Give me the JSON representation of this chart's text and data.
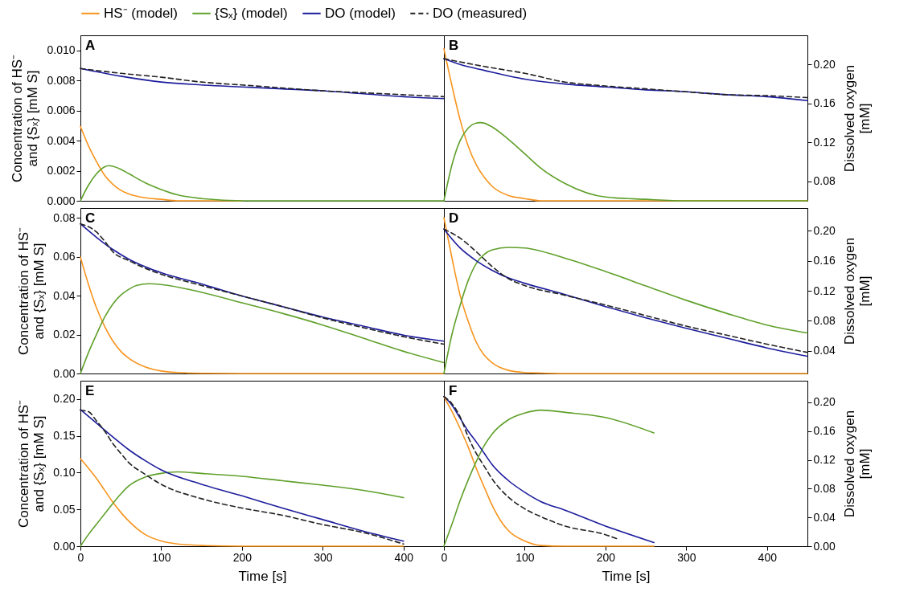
{
  "chart_data": [
    {
      "type": "line",
      "title": "A",
      "ylabel": "Concentration of HS⁻\nand {Sₓ} [mM S]",
      "xlim": [
        0,
        450
      ],
      "ylim": [
        0,
        0.011
      ],
      "yticks": [
        {
          "value": 0,
          "label": "0.000"
        },
        {
          "value": 0.002,
          "label": "0.002"
        },
        {
          "value": 0.004,
          "label": "0.004"
        },
        {
          "value": 0.006,
          "label": "0.006"
        },
        {
          "value": 0.008,
          "label": "0.008"
        },
        {
          "value": 0.01,
          "label": "0.010"
        }
      ],
      "y2lim": [
        0.06,
        0.23
      ],
      "tick_labels": [
        "y"
      ],
      "legend": "top",
      "series": [
        {
          "name": "HS⁻ (model)",
          "color": "#f7941d",
          "x": [
            0,
            10,
            20,
            30,
            40,
            50,
            60,
            80,
            100,
            120,
            150,
            200
          ],
          "values": [
            0.00495,
            0.00365,
            0.0026,
            0.0017,
            0.0011,
            0.0007,
            0.00045,
            0.0002,
            0.0001,
            0,
            0,
            0
          ]
        },
        {
          "name": "{Sₓ} (model)",
          "color": "#5fa02a",
          "x": [
            0,
            10,
            20,
            30,
            35,
            40,
            50,
            60,
            80,
            100,
            120,
            150,
            200,
            250,
            300,
            450
          ],
          "values": [
            0,
            0.00104,
            0.0018,
            0.00226,
            0.00234,
            0.0023,
            0.0021,
            0.0018,
            0.0012,
            0.00075,
            0.0004,
            0.00015,
            0,
            0,
            0,
            0
          ]
        },
        {
          "name": "DO (model)",
          "color": "#1c1c9c",
          "axis": "y2",
          "x": [
            0,
            50,
            100,
            150,
            200,
            250,
            300,
            350,
            400,
            450
          ],
          "values": [
            0.196,
            0.188,
            0.182,
            0.179,
            0.177,
            0.175,
            0.173,
            0.17,
            0.167,
            0.165
          ]
        },
        {
          "name": "DO (measured)",
          "color": "#222222",
          "axis": "y2",
          "line_style": "dashed",
          "x": [
            0,
            50,
            100,
            150,
            200,
            250,
            300,
            350,
            400,
            450
          ],
          "values": [
            0.196,
            0.191,
            0.187,
            0.182,
            0.179,
            0.176,
            0.173,
            0.171,
            0.169,
            0.167
          ]
        }
      ]
    },
    {
      "type": "line",
      "title": "B",
      "y2label": "Dissolved oxygen\n[mM]",
      "xlim": [
        0,
        450
      ],
      "ylim": [
        0,
        0.011
      ],
      "y2lim": [
        0.06,
        0.23
      ],
      "y2ticks": [
        {
          "value": 0.08,
          "label": "0.08"
        },
        {
          "value": 0.12,
          "label": "0.12"
        },
        {
          "value": 0.16,
          "label": "0.16"
        },
        {
          "value": 0.2,
          "label": "0.20"
        }
      ],
      "tick_labels": [
        "y2"
      ],
      "series": [
        {
          "color": "#f7941d",
          "x": [
            0,
            10,
            20,
            30,
            40,
            50,
            60,
            80,
            100,
            120,
            150,
            200,
            450
          ],
          "values": [
            0.0101,
            0.00764,
            0.0054,
            0.00365,
            0.0024,
            0.00156,
            0.00095,
            0.00035,
            0.00015,
            0,
            0,
            0,
            0
          ]
        },
        {
          "color": "#5fa02a",
          "x": [
            0,
            10,
            20,
            30,
            40,
            45,
            50,
            60,
            80,
            100,
            120,
            150,
            200,
            250,
            300,
            350,
            450
          ],
          "values": [
            0,
            0.0024,
            0.004,
            0.00483,
            0.00517,
            0.0052,
            0.00516,
            0.0049,
            0.00408,
            0.00313,
            0.00217,
            0.00115,
            0.00025,
            0.0001,
            0,
            0,
            0
          ]
        },
        {
          "color": "#1c1c9c",
          "axis": "y2",
          "x": [
            0,
            20,
            50,
            100,
            150,
            200,
            250,
            300,
            350,
            400,
            450
          ],
          "values": [
            0.206,
            0.2,
            0.194,
            0.185,
            0.18,
            0.177,
            0.174,
            0.172,
            0.169,
            0.167,
            0.163
          ]
        },
        {
          "color": "#222222",
          "axis": "y2",
          "line_style": "dashed",
          "x": [
            0,
            50,
            100,
            150,
            200,
            250,
            300,
            350,
            400,
            450
          ],
          "values": [
            0.206,
            0.198,
            0.191,
            0.182,
            0.178,
            0.175,
            0.172,
            0.169,
            0.168,
            0.166
          ]
        }
      ]
    },
    {
      "type": "line",
      "title": "C",
      "ylabel": "Concentration of HS⁻\nand {Sₓ} [mM S]",
      "xlim": [
        0,
        450
      ],
      "ylim": [
        0,
        0.085
      ],
      "yticks": [
        {
          "value": 0,
          "label": "0.00"
        },
        {
          "value": 0.02,
          "label": "0.02"
        },
        {
          "value": 0.04,
          "label": "0.04"
        },
        {
          "value": 0.06,
          "label": "0.06"
        },
        {
          "value": 0.08,
          "label": "0.08"
        }
      ],
      "y2lim": [
        0.01,
        0.23
      ],
      "tick_labels": [
        "y"
      ],
      "series": [
        {
          "color": "#f7941d",
          "x": [
            0,
            10,
            20,
            30,
            40,
            50,
            60,
            80,
            100,
            120,
            150,
            200,
            450
          ],
          "values": [
            0.0598,
            0.0457,
            0.0336,
            0.0242,
            0.0168,
            0.0114,
            0.0078,
            0.0034,
            0.0013,
            0.0005,
            0.0001,
            0,
            0
          ]
        },
        {
          "color": "#5fa02a",
          "x": [
            0,
            10,
            20,
            30,
            40,
            50,
            60,
            70,
            85,
            100,
            150,
            200,
            250,
            300,
            350,
            400,
            450
          ],
          "values": [
            0,
            0.0108,
            0.0202,
            0.0289,
            0.0356,
            0.0403,
            0.0433,
            0.0453,
            0.0461,
            0.0457,
            0.0417,
            0.0363,
            0.0309,
            0.0249,
            0.0182,
            0.0114,
            0.0056
          ]
        },
        {
          "color": "#1c1c9c",
          "axis": "y2",
          "x": [
            0,
            20,
            40,
            60,
            80,
            100,
            150,
            200,
            250,
            300,
            350,
            400,
            450
          ],
          "values": [
            0.209,
            0.191,
            0.175,
            0.162,
            0.152,
            0.144,
            0.129,
            0.113,
            0.099,
            0.085,
            0.073,
            0.061,
            0.053
          ]
        },
        {
          "color": "#222222",
          "axis": "y2",
          "line_style": "dashed",
          "x": [
            0,
            20,
            30,
            40,
            60,
            80,
            100,
            150,
            200,
            250,
            300,
            350,
            400,
            450
          ],
          "values": [
            0.209,
            0.198,
            0.186,
            0.172,
            0.16,
            0.15,
            0.142,
            0.127,
            0.113,
            0.099,
            0.084,
            0.071,
            0.059,
            0.049
          ]
        }
      ]
    },
    {
      "type": "line",
      "title": "D",
      "y2label": "Dissolved oxygen\n[mM]",
      "xlim": [
        0,
        450
      ],
      "ylim": [
        0,
        0.085
      ],
      "y2lim": [
        0.01,
        0.23
      ],
      "y2ticks": [
        {
          "value": 0.04,
          "label": "0.04"
        },
        {
          "value": 0.08,
          "label": "0.08"
        },
        {
          "value": 0.12,
          "label": "0.12"
        },
        {
          "value": 0.16,
          "label": "0.16"
        },
        {
          "value": 0.2,
          "label": "0.20"
        }
      ],
      "tick_labels": [
        "y2"
      ],
      "series": [
        {
          "color": "#f7941d",
          "x": [
            0,
            10,
            20,
            30,
            40,
            50,
            60,
            80,
            100,
            120,
            150,
            450
          ],
          "values": [
            0.08,
            0.0592,
            0.0403,
            0.0269,
            0.0161,
            0.0094,
            0.0054,
            0.0016,
            0.0005,
            0.0002,
            0,
            0
          ]
        },
        {
          "color": "#5fa02a",
          "x": [
            0,
            10,
            20,
            30,
            40,
            50,
            60,
            80,
            100,
            150,
            200,
            250,
            300,
            350,
            400,
            450
          ],
          "values": [
            0,
            0.0202,
            0.035,
            0.0477,
            0.0565,
            0.0612,
            0.0635,
            0.0648,
            0.0645,
            0.0592,
            0.0524,
            0.045,
            0.0376,
            0.0309,
            0.0249,
            0.0208
          ]
        },
        {
          "color": "#1c1c9c",
          "axis": "y2",
          "x": [
            0,
            20,
            40,
            60,
            80,
            100,
            150,
            200,
            250,
            300,
            350,
            400,
            450
          ],
          "values": [
            0.202,
            0.177,
            0.16,
            0.147,
            0.137,
            0.13,
            0.115,
            0.099,
            0.084,
            0.07,
            0.057,
            0.044,
            0.033
          ]
        },
        {
          "color": "#222222",
          "axis": "y2",
          "line_style": "dashed",
          "x": [
            0,
            20,
            40,
            60,
            80,
            100,
            150,
            200,
            250,
            300,
            350,
            400,
            450
          ],
          "values": [
            0.202,
            0.19,
            0.172,
            0.152,
            0.136,
            0.127,
            0.114,
            0.101,
            0.087,
            0.073,
            0.061,
            0.049,
            0.038
          ]
        }
      ]
    },
    {
      "type": "line",
      "title": "E",
      "ylabel": "Concentration of HS⁻\nand {Sₓ} [mM S]",
      "xlabel": "Time [s]",
      "xlim": [
        0,
        450
      ],
      "xticks": [
        0,
        100,
        200,
        300,
        400
      ],
      "ylim": [
        0,
        0.225
      ],
      "yticks": [
        {
          "value": 0,
          "label": "0.00"
        },
        {
          "value": 0.05,
          "label": "0.05"
        },
        {
          "value": 0.1,
          "label": "0.10"
        },
        {
          "value": 0.15,
          "label": "0.15"
        },
        {
          "value": 0.2,
          "label": "0.20"
        }
      ],
      "y2lim": [
        0,
        0.23
      ],
      "tick_labels": [
        "x",
        "y"
      ],
      "series": [
        {
          "color": "#f7941d",
          "x": [
            0,
            10,
            20,
            30,
            40,
            50,
            60,
            80,
            100,
            120,
            150,
            200,
            400
          ],
          "values": [
            0.119,
            0.106,
            0.092,
            0.076,
            0.06,
            0.046,
            0.034,
            0.016,
            0.007,
            0.003,
            0.001,
            0,
            0
          ]
        },
        {
          "color": "#5fa02a",
          "x": [
            0,
            10,
            20,
            30,
            40,
            50,
            60,
            80,
            100,
            120,
            150,
            200,
            250,
            300,
            350,
            400
          ],
          "values": [
            0,
            0.016,
            0.03,
            0.044,
            0.058,
            0.071,
            0.082,
            0.094,
            0.099,
            0.101,
            0.099,
            0.095,
            0.089,
            0.083,
            0.076,
            0.066
          ]
        },
        {
          "color": "#1c1c9c",
          "axis": "y2",
          "x": [
            0,
            20,
            40,
            60,
            80,
            100,
            150,
            200,
            250,
            300,
            350,
            400
          ],
          "values": [
            0.19,
            0.171,
            0.152,
            0.134,
            0.119,
            0.106,
            0.086,
            0.07,
            0.053,
            0.037,
            0.021,
            0.007
          ]
        },
        {
          "color": "#222222",
          "axis": "y2",
          "line_style": "dashed",
          "x": [
            0,
            10,
            20,
            30,
            40,
            50,
            60,
            80,
            100,
            150,
            200,
            250,
            300,
            350,
            400
          ],
          "values": [
            0.189,
            0.187,
            0.174,
            0.16,
            0.143,
            0.129,
            0.116,
            0.1,
            0.086,
            0.066,
            0.053,
            0.043,
            0.03,
            0.019,
            0.003
          ]
        }
      ]
    },
    {
      "type": "line",
      "title": "F",
      "y2label": "Dissolved oxygen\n[mM]",
      "xlabel": "Time [s]",
      "xlim": [
        0,
        450
      ],
      "xticks": [
        0,
        100,
        200,
        300,
        400
      ],
      "ylim": [
        0,
        0.225
      ],
      "y2lim": [
        0,
        0.23
      ],
      "y2ticks": [
        {
          "value": 0,
          "label": "0.00"
        },
        {
          "value": 0.04,
          "label": "0.04"
        },
        {
          "value": 0.08,
          "label": "0.08"
        },
        {
          "value": 0.12,
          "label": "0.12"
        },
        {
          "value": 0.16,
          "label": "0.16"
        },
        {
          "value": 0.2,
          "label": "0.20"
        }
      ],
      "tick_labels": [
        "x",
        "y2"
      ],
      "series": [
        {
          "color": "#f7941d",
          "x": [
            0,
            10,
            20,
            30,
            40,
            50,
            60,
            70,
            80,
            100,
            120,
            150,
            200,
            260
          ],
          "values": [
            0.203,
            0.183,
            0.16,
            0.135,
            0.106,
            0.08,
            0.055,
            0.035,
            0.021,
            0.007,
            0.001,
            0,
            0,
            0
          ]
        },
        {
          "color": "#5fa02a",
          "x": [
            0,
            10,
            20,
            30,
            40,
            50,
            60,
            80,
            100,
            120,
            150,
            200,
            260
          ],
          "values": [
            0,
            0.03,
            0.062,
            0.09,
            0.115,
            0.137,
            0.153,
            0.172,
            0.181,
            0.185,
            0.182,
            0.175,
            0.154
          ]
        },
        {
          "color": "#1c1c9c",
          "axis": "y2",
          "x": [
            0,
            10,
            20,
            30,
            40,
            50,
            60,
            80,
            100,
            120,
            150,
            200,
            260
          ],
          "values": [
            0.208,
            0.196,
            0.178,
            0.16,
            0.145,
            0.129,
            0.113,
            0.091,
            0.075,
            0.062,
            0.05,
            0.028,
            0.005
          ]
        },
        {
          "color": "#222222",
          "axis": "y2",
          "line_style": "dashed",
          "x": [
            0,
            10,
            20,
            30,
            40,
            50,
            60,
            80,
            100,
            120,
            150,
            200,
            215
          ],
          "values": [
            0.208,
            0.198,
            0.18,
            0.152,
            0.129,
            0.111,
            0.093,
            0.068,
            0.052,
            0.041,
            0.028,
            0.016,
            0.01
          ]
        }
      ]
    }
  ]
}
